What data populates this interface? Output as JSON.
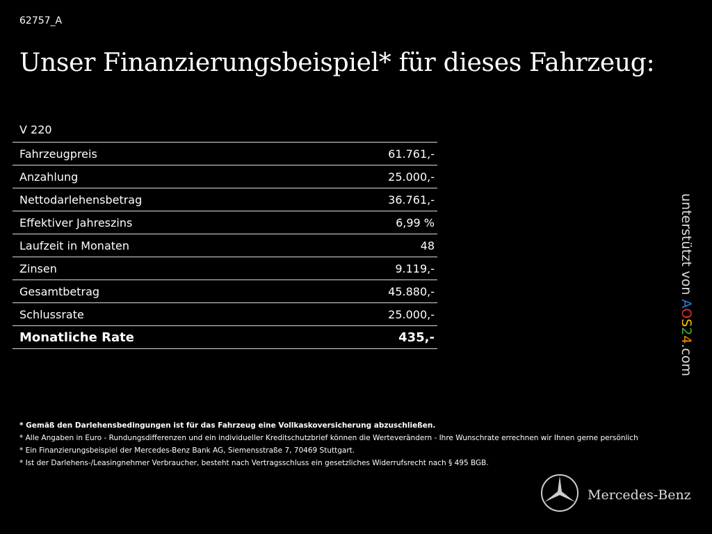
{
  "id": "62757_A",
  "title": "Unser Finanzierungsbeispiel* für dieses Fahrzeug:",
  "table": {
    "caption": "V 220",
    "rows": [
      [
        "Fahrzeugpreis",
        "61.761,-"
      ],
      [
        "Anzahlung",
        "25.000,-"
      ],
      [
        "Nettodarlehensbetrag",
        "36.761,-"
      ],
      [
        "Effektiver Jahreszins",
        "6,99 %"
      ],
      [
        "Laufzeit in Monaten",
        "48"
      ],
      [
        "Zinsen",
        "9.119,-"
      ],
      [
        "Gesamtbetrag",
        "45.880,-"
      ],
      [
        "Schlussrate",
        "25.000,-"
      ],
      [
        "Monatliche Rate",
        "435,-"
      ]
    ]
  },
  "footnotes": [
    "* Gemäß den Darlehensbedingungen ist für das Fahrzeug eine Vollkaskoversicherung abzuschließen.",
    "* Alle Angaben in Euro - Rundungsdifferenzen und ein individueller Kreditschutzbrief können die Werteverändern - Ihre Wunschrate errechnen wir Ihnen gerne persönlich",
    "* Ein Finanzierungsbeispiel der Mercedes-Benz Bank AG, Siemensstraße 7, 70469 Stuttgart.",
    "* Ist der Darlehens-/Leasingnehmer Verbraucher, besteht nach Vertragsschluss ein gesetzliches Widerrufsrecht nach § 495 BGB."
  ],
  "side": {
    "text": "unterstützt von",
    "logo": [
      "A",
      "O",
      "S",
      "2",
      "4"
    ],
    "suffix": ".com"
  },
  "brand": "Mercedes-Benz"
}
